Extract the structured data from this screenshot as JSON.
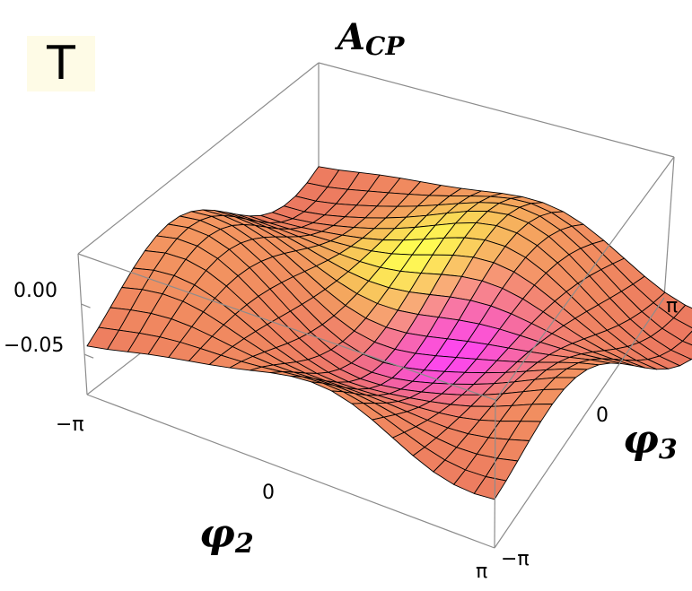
{
  "panel_label": "T",
  "chart_data": {
    "type": "surface3d",
    "title": "A",
    "title_subscript": "CP",
    "x_axis": {
      "symbol": "φ",
      "subscript": "2",
      "ticks": [
        "−π",
        "0",
        "π"
      ],
      "range": [
        -3.1416,
        3.1416
      ]
    },
    "y_axis": {
      "symbol": "φ",
      "subscript": "3",
      "ticks": [
        "−π",
        "0",
        "π"
      ],
      "range": [
        -3.1416,
        3.1416
      ]
    },
    "z_axis": {
      "ticks": [
        "0.00",
        "−0.05"
      ],
      "tick_values": [
        0.0,
        -0.05
      ],
      "range": [
        -0.09,
        0.05
      ]
    },
    "grid_lines": 20,
    "colors": {
      "low": "#d8505a",
      "mid": "#f08a5d",
      "high": "#ffff55",
      "magenta": "#ff40ff",
      "mesh": "#000000",
      "box": "#8c8c8c"
    }
  }
}
